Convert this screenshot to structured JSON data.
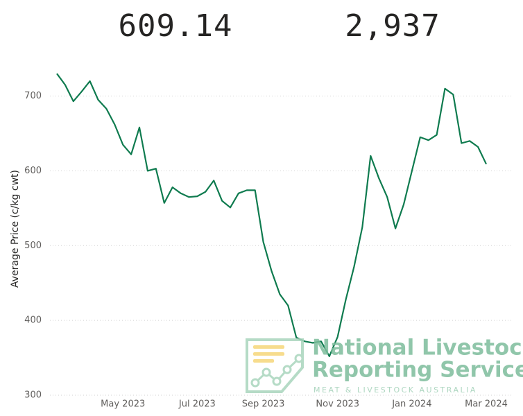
{
  "kpis": [
    "609.14",
    "2,937"
  ],
  "chart_data": {
    "type": "line",
    "y_label": "Average Price (c/kg cwt)",
    "categories": [
      null,
      null,
      null,
      null,
      null,
      null,
      null,
      null,
      "May 2023",
      null,
      null,
      null,
      null,
      null,
      null,
      null,
      null,
      "Jul 2023",
      null,
      null,
      null,
      null,
      null,
      null,
      null,
      "Sep 2023",
      null,
      null,
      null,
      null,
      null,
      null,
      null,
      null,
      "Nov 2023",
      null,
      null,
      null,
      null,
      null,
      null,
      null,
      null,
      "Jan 2024",
      null,
      null,
      null,
      null,
      null,
      null,
      null,
      null,
      "Mar 2024"
    ],
    "values": [
      730,
      715,
      693,
      706,
      720,
      695,
      683,
      662,
      635,
      622,
      658,
      600,
      603,
      557,
      578,
      570,
      565,
      566,
      572,
      587,
      560,
      551,
      570,
      574,
      574,
      505,
      466,
      435,
      420,
      377,
      372,
      370,
      372,
      352,
      378,
      428,
      472,
      525,
      620,
      590,
      565,
      523,
      555,
      600,
      645,
      641,
      648,
      710,
      702,
      637,
      640,
      632,
      609
    ],
    "color": "#0f7b4f",
    "ylim": [
      300,
      745
    ],
    "yticks": [
      300,
      400,
      500,
      600,
      700
    ],
    "grid": true
  },
  "logo": {
    "line1": "National Livestock",
    "line2": "Reporting Service",
    "line3": "MEAT & LIVESTOCK AUSTRALIA"
  }
}
